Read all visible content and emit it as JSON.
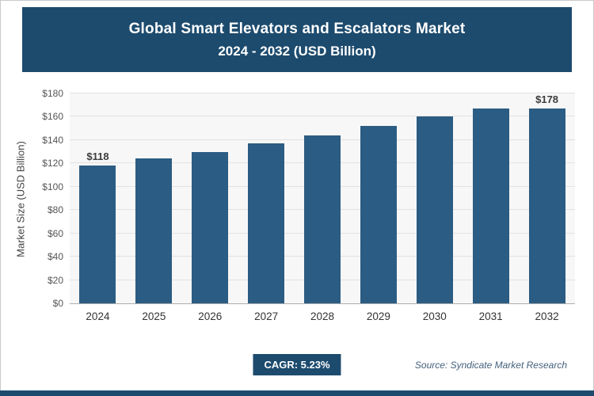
{
  "header": {
    "title_line1": "Global Smart Elevators and Escalators Market",
    "title_line2": "2024 - 2032 (USD Billion)"
  },
  "chart_data": {
    "type": "bar",
    "title": "Global Smart Elevators and Escalators Market 2024 - 2032 (USD Billion)",
    "categories": [
      "2024",
      "2025",
      "2026",
      "2027",
      "2028",
      "2029",
      "2030",
      "2031",
      "2032"
    ],
    "values": [
      118,
      124,
      130,
      137,
      144,
      152,
      160,
      168,
      178
    ],
    "bar_value_labels": [
      "$118",
      "",
      "",
      "",
      "",
      "",
      "",
      "",
      "$178"
    ],
    "xlabel": "",
    "ylabel": "Market Size (USD Billion)",
    "ylim": [
      0,
      180
    ],
    "ytick_step": 20,
    "ytick_prefix": "$",
    "grid": true,
    "legend": false
  },
  "footer": {
    "cagr_label": "CAGR: 5.23%",
    "source": "Source: Syndicate Market Research"
  },
  "colors": {
    "accent": "#1d4b6e",
    "bar": "#2b5c83",
    "plot_background": "#f7f7f7",
    "gridline": "#e2e2e2"
  }
}
